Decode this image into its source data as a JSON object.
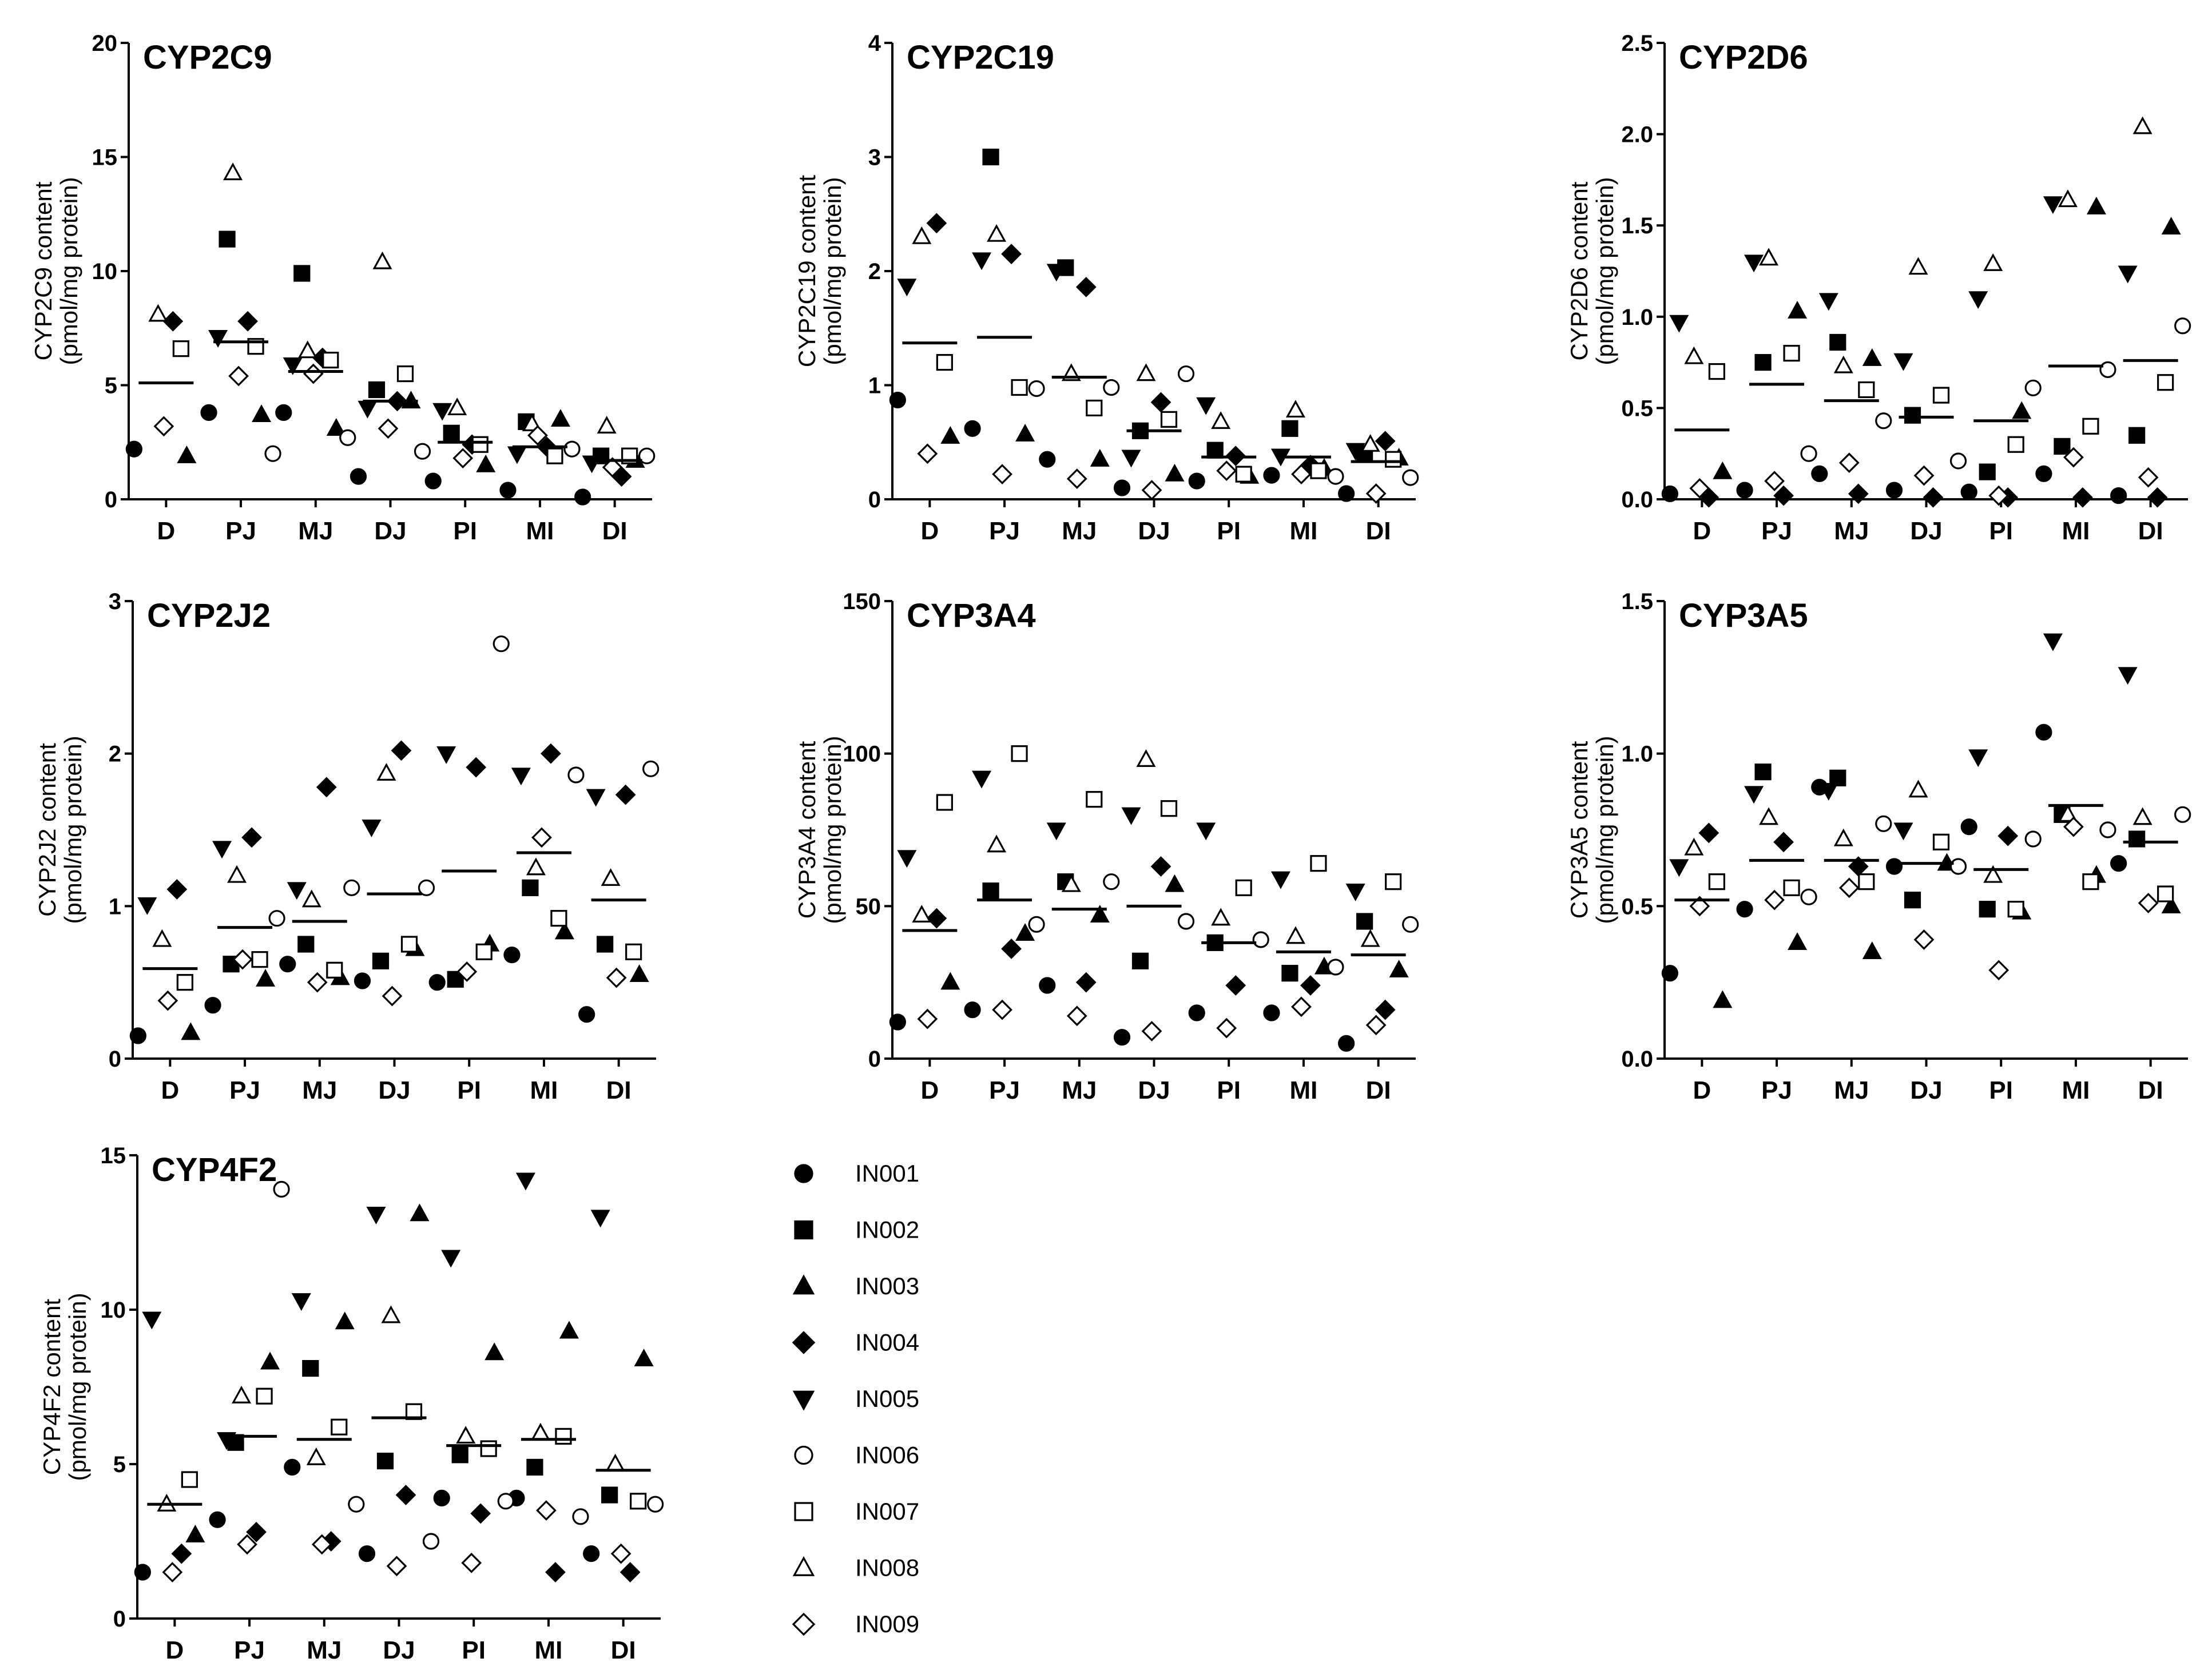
{
  "individuals": [
    "IN001",
    "IN002",
    "IN003",
    "IN004",
    "IN005",
    "IN006",
    "IN007",
    "IN008",
    "IN009"
  ],
  "legend": {
    "entries": [
      {
        "label": "IN001",
        "marker": "circle-filled"
      },
      {
        "label": "IN002",
        "marker": "square-filled"
      },
      {
        "label": "IN003",
        "marker": "triangle-up-filled"
      },
      {
        "label": "IN004",
        "marker": "diamond-filled"
      },
      {
        "label": "IN005",
        "marker": "triangle-down-filled"
      },
      {
        "label": "IN006",
        "marker": "circle-open"
      },
      {
        "label": "IN007",
        "marker": "square-open"
      },
      {
        "label": "IN008",
        "marker": "triangle-up-open"
      },
      {
        "label": "IN009",
        "marker": "diamond-open"
      }
    ]
  },
  "chart_data": [
    {
      "type": "scatter",
      "title": "CYP2C9",
      "ylabel_line1": "CYP2C9 content",
      "ylabel_line2": "(pmol/mg protein)",
      "categories": [
        "D",
        "PJ",
        "MJ",
        "DJ",
        "PI",
        "MI",
        "DI"
      ],
      "ylim": [
        0,
        20
      ],
      "yticks": [
        "0",
        "5",
        "10",
        "15",
        "20"
      ],
      "means": [
        5.1,
        6.9,
        5.6,
        4.3,
        2.5,
        2.3,
        1.7
      ],
      "series": [
        {
          "name": "IN001",
          "values": [
            2.2,
            3.8,
            3.8,
            1.0,
            0.8,
            0.4,
            0.1
          ]
        },
        {
          "name": "IN002",
          "values": [
            null,
            11.4,
            9.9,
            4.8,
            2.9,
            3.4,
            1.9
          ]
        },
        {
          "name": "IN003",
          "values": [
            1.9,
            3.7,
            3.1,
            4.3,
            1.5,
            3.5,
            1.7
          ]
        },
        {
          "name": "IN004",
          "values": [
            7.8,
            7.8,
            6.2,
            4.3,
            2.4,
            2.3,
            1.0
          ]
        },
        {
          "name": "IN005",
          "values": [
            null,
            7.1,
            5.9,
            4.0,
            3.9,
            2.0,
            1.6
          ]
        },
        {
          "name": "IN006",
          "values": [
            null,
            2.0,
            2.7,
            2.1,
            null,
            2.2,
            1.9
          ]
        },
        {
          "name": "IN007",
          "values": [
            6.6,
            6.7,
            6.1,
            5.5,
            2.4,
            1.9,
            1.9
          ]
        },
        {
          "name": "IN008",
          "values": [
            8.1,
            14.3,
            6.5,
            10.4,
            4.0,
            3.3,
            3.2
          ]
        },
        {
          "name": "IN009",
          "values": [
            3.2,
            5.4,
            5.5,
            3.1,
            1.8,
            2.8,
            1.4
          ]
        }
      ]
    },
    {
      "type": "scatter",
      "title": "CYP2C19",
      "ylabel_line1": "CYP2C19 content",
      "ylabel_line2": "(pmol/mg protein)",
      "categories": [
        "D",
        "PJ",
        "MJ",
        "DJ",
        "PI",
        "MI",
        "DI"
      ],
      "ylim": [
        0,
        4
      ],
      "yticks": [
        "0",
        "1",
        "2",
        "3",
        "4"
      ],
      "means": [
        1.37,
        1.42,
        1.07,
        0.6,
        0.37,
        0.37,
        0.33
      ],
      "series": [
        {
          "name": "IN001",
          "values": [
            0.87,
            0.62,
            0.35,
            0.1,
            0.16,
            0.21,
            0.05
          ]
        },
        {
          "name": "IN002",
          "values": [
            null,
            3.0,
            2.03,
            0.6,
            0.43,
            0.62,
            0.4
          ]
        },
        {
          "name": "IN003",
          "values": [
            0.55,
            0.57,
            0.35,
            0.22,
            0.2,
            0.27,
            0.36
          ]
        },
        {
          "name": "IN004",
          "values": [
            2.42,
            2.15,
            1.86,
            0.85,
            0.38,
            0.3,
            0.51
          ]
        },
        {
          "name": "IN005",
          "values": [
            1.87,
            2.1,
            2.0,
            0.37,
            0.83,
            0.38,
            0.43
          ]
        },
        {
          "name": "IN006",
          "values": [
            null,
            0.97,
            0.98,
            1.1,
            null,
            0.2,
            0.19
          ]
        },
        {
          "name": "IN007",
          "values": [
            1.2,
            0.98,
            0.8,
            0.7,
            0.22,
            0.25,
            0.35
          ]
        },
        {
          "name": "IN008",
          "values": [
            2.3,
            2.32,
            1.1,
            1.1,
            0.68,
            0.78,
            0.48
          ]
        },
        {
          "name": "IN009",
          "values": [
            0.4,
            0.22,
            0.18,
            0.08,
            0.25,
            0.22,
            0.05
          ]
        }
      ]
    },
    {
      "type": "scatter",
      "title": "CYP2D6",
      "ylabel_line1": "CYP2D6 content",
      "ylabel_line2": "(pmol/mg protein)",
      "categories": [
        "D",
        "PJ",
        "MJ",
        "DJ",
        "PI",
        "MI",
        "DI"
      ],
      "ylim": [
        0,
        2.5
      ],
      "yticks": [
        "0.0",
        "0.5",
        "1.0",
        "1.5",
        "2.0",
        "2.5"
      ],
      "means": [
        0.38,
        0.63,
        0.54,
        0.45,
        0.43,
        0.73,
        0.76
      ],
      "series": [
        {
          "name": "IN001",
          "values": [
            0.03,
            0.05,
            0.14,
            0.05,
            0.04,
            0.14,
            0.02
          ]
        },
        {
          "name": "IN002",
          "values": [
            null,
            0.75,
            0.86,
            0.46,
            0.15,
            0.29,
            0.35
          ]
        },
        {
          "name": "IN003",
          "values": [
            0.15,
            1.03,
            0.77,
            null,
            0.48,
            1.6,
            1.49
          ]
        },
        {
          "name": "IN004",
          "values": [
            0.01,
            0.02,
            0.03,
            0.01,
            0.01,
            0.01,
            0.01
          ]
        },
        {
          "name": "IN005",
          "values": [
            0.97,
            1.3,
            1.09,
            0.76,
            1.1,
            1.62,
            1.24
          ]
        },
        {
          "name": "IN006",
          "values": [
            null,
            0.25,
            0.43,
            0.21,
            0.61,
            0.71,
            0.95
          ]
        },
        {
          "name": "IN007",
          "values": [
            0.7,
            0.8,
            0.6,
            0.57,
            0.3,
            0.4,
            0.64
          ]
        },
        {
          "name": "IN008",
          "values": [
            0.78,
            1.32,
            0.73,
            1.27,
            1.29,
            1.64,
            2.04
          ]
        },
        {
          "name": "IN009",
          "values": [
            0.06,
            0.1,
            0.2,
            0.13,
            0.02,
            0.23,
            0.12
          ]
        }
      ]
    },
    {
      "type": "scatter",
      "title": "CYP2J2",
      "ylabel_line1": "CYP2J2 content",
      "ylabel_line2": "(pmol/mg protein)",
      "categories": [
        "D",
        "PJ",
        "MJ",
        "DJ",
        "PI",
        "MI",
        "DI"
      ],
      "ylim": [
        0,
        3
      ],
      "yticks": [
        "0",
        "1",
        "2",
        "3"
      ],
      "means": [
        0.59,
        0.86,
        0.9,
        1.08,
        1.23,
        1.35,
        1.04
      ],
      "series": [
        {
          "name": "IN001",
          "values": [
            0.15,
            0.35,
            0.62,
            0.51,
            0.5,
            0.68,
            0.29
          ]
        },
        {
          "name": "IN002",
          "values": [
            null,
            0.62,
            0.75,
            0.64,
            0.52,
            1.12,
            0.75
          ]
        },
        {
          "name": "IN003",
          "values": [
            0.17,
            0.52,
            0.53,
            0.72,
            0.75,
            0.83,
            0.55
          ]
        },
        {
          "name": "IN004",
          "values": [
            1.11,
            1.45,
            1.78,
            2.02,
            1.91,
            2.0,
            1.73
          ]
        },
        {
          "name": "IN005",
          "values": [
            1.01,
            1.38,
            1.11,
            1.52,
            2.0,
            1.86,
            1.72
          ]
        },
        {
          "name": "IN006",
          "values": [
            null,
            0.92,
            1.12,
            1.12,
            2.72,
            1.86,
            1.9
          ]
        },
        {
          "name": "IN007",
          "values": [
            0.5,
            0.65,
            0.58,
            0.75,
            0.7,
            0.92,
            0.7
          ]
        },
        {
          "name": "IN008",
          "values": [
            0.78,
            1.2,
            1.04,
            1.87,
            null,
            1.25,
            1.18
          ]
        },
        {
          "name": "IN009",
          "values": [
            0.38,
            0.65,
            0.5,
            0.41,
            0.57,
            1.45,
            0.53
          ]
        }
      ]
    },
    {
      "type": "scatter",
      "title": "CYP3A4",
      "ylabel_line1": "CYP3A4 content",
      "ylabel_line2": "(pmol/mg protein)",
      "categories": [
        "D",
        "PJ",
        "MJ",
        "DJ",
        "PI",
        "MI",
        "DI"
      ],
      "ylim": [
        0,
        150
      ],
      "yticks": [
        "0",
        "50",
        "100",
        "150"
      ],
      "means": [
        42,
        52,
        49,
        50,
        38,
        35,
        34
      ],
      "series": [
        {
          "name": "IN001",
          "values": [
            12,
            16,
            24,
            7,
            15,
            15,
            5
          ]
        },
        {
          "name": "IN002",
          "values": [
            null,
            55,
            58,
            32,
            38,
            28,
            45
          ]
        },
        {
          "name": "IN003",
          "values": [
            25,
            41,
            47,
            57,
            null,
            30,
            29
          ]
        },
        {
          "name": "IN004",
          "values": [
            46,
            36,
            25,
            63,
            24,
            24,
            16
          ]
        },
        {
          "name": "IN005",
          "values": [
            66,
            92,
            75,
            80,
            75,
            59,
            55
          ]
        },
        {
          "name": "IN006",
          "values": [
            null,
            44,
            58,
            45,
            39,
            30,
            44
          ]
        },
        {
          "name": "IN007",
          "values": [
            84,
            100,
            85,
            82,
            56,
            64,
            58
          ]
        },
        {
          "name": "IN008",
          "values": [
            47,
            70,
            57,
            98,
            46,
            40,
            39
          ]
        },
        {
          "name": "IN009",
          "values": [
            13,
            16,
            14,
            9,
            10,
            17,
            11
          ]
        }
      ]
    },
    {
      "type": "scatter",
      "title": "CYP3A5",
      "ylabel_line1": "CYP3A5 content",
      "ylabel_line2": "(pmol/mg protein)",
      "categories": [
        "D",
        "PJ",
        "MJ",
        "DJ",
        "PI",
        "MI",
        "DI"
      ],
      "ylim": [
        0,
        1.5
      ],
      "yticks": [
        "0.0",
        "0.5",
        "1.0",
        "1.5"
      ],
      "means": [
        0.52,
        0.65,
        0.65,
        0.64,
        0.62,
        0.83,
        0.71
      ],
      "series": [
        {
          "name": "IN001",
          "values": [
            0.28,
            0.49,
            0.89,
            0.63,
            0.76,
            1.07,
            0.64
          ]
        },
        {
          "name": "IN002",
          "values": [
            null,
            0.94,
            0.92,
            0.52,
            0.49,
            0.8,
            0.72
          ]
        },
        {
          "name": "IN003",
          "values": [
            0.19,
            0.38,
            0.35,
            0.64,
            0.48,
            0.6,
            0.5
          ]
        },
        {
          "name": "IN004",
          "values": [
            0.74,
            0.71,
            0.63,
            null,
            0.73,
            null,
            null
          ]
        },
        {
          "name": "IN005",
          "values": [
            0.63,
            0.87,
            0.88,
            0.75,
            0.99,
            1.37,
            1.26
          ]
        },
        {
          "name": "IN006",
          "values": [
            null,
            0.53,
            0.77,
            0.63,
            0.72,
            0.75,
            0.8
          ]
        },
        {
          "name": "IN007",
          "values": [
            0.58,
            0.56,
            0.58,
            0.71,
            0.49,
            0.58,
            0.54
          ]
        },
        {
          "name": "IN008",
          "values": [
            0.69,
            0.79,
            0.72,
            0.88,
            0.6,
            0.8,
            0.79
          ]
        },
        {
          "name": "IN009",
          "values": [
            0.5,
            0.52,
            0.56,
            0.39,
            0.29,
            0.76,
            0.51
          ]
        }
      ]
    },
    {
      "type": "scatter",
      "title": "CYP4F2",
      "ylabel_line1": "CYP4F2 content",
      "ylabel_line2": "(pmol/mg protein)",
      "categories": [
        "D",
        "PJ",
        "MJ",
        "DJ",
        "PI",
        "MI",
        "DI"
      ],
      "ylim": [
        0,
        15
      ],
      "yticks": [
        "0",
        "5",
        "10",
        "15"
      ],
      "means": [
        3.7,
        5.9,
        5.8,
        6.5,
        5.6,
        5.8,
        4.8
      ],
      "series": [
        {
          "name": "IN001",
          "values": [
            1.5,
            3.2,
            4.9,
            2.1,
            3.9,
            3.9,
            2.1
          ]
        },
        {
          "name": "IN002",
          "values": [
            null,
            5.7,
            8.1,
            5.1,
            5.3,
            4.9,
            4.0
          ]
        },
        {
          "name": "IN003",
          "values": [
            2.7,
            8.3,
            9.6,
            13.1,
            8.6,
            9.3,
            8.4
          ]
        },
        {
          "name": "IN004",
          "values": [
            2.1,
            2.8,
            2.5,
            4.0,
            3.4,
            1.5,
            1.5
          ]
        },
        {
          "name": "IN005",
          "values": [
            9.7,
            5.8,
            10.3,
            13.1,
            11.7,
            14.2,
            13.0
          ]
        },
        {
          "name": "IN006",
          "values": [
            null,
            13.9,
            3.7,
            2.5,
            3.8,
            3.3,
            3.7
          ]
        },
        {
          "name": "IN007",
          "values": [
            4.5,
            7.2,
            6.2,
            6.7,
            5.5,
            5.9,
            3.8
          ]
        },
        {
          "name": "IN008",
          "values": [
            3.7,
            7.2,
            5.2,
            9.8,
            5.9,
            6.0,
            5.0
          ]
        },
        {
          "name": "IN009",
          "values": [
            1.5,
            2.4,
            2.4,
            1.7,
            1.8,
            3.5,
            2.1
          ]
        }
      ]
    }
  ]
}
